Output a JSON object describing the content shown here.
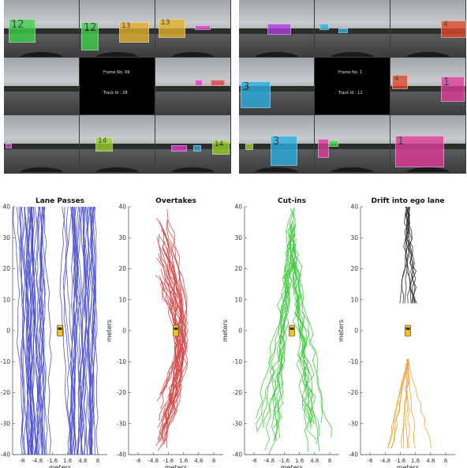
{
  "panels": [
    {
      "frame_label": "Frame No. 99",
      "track_label": "Track Id : 28",
      "boxes": [
        {
          "cell": 0,
          "label": "12",
          "color": "#3ed34a"
        },
        {
          "cell": 1,
          "label": "12",
          "color": "#3ed34a"
        },
        {
          "cell": 1,
          "label": "13",
          "color": "#e3b12a"
        },
        {
          "cell": 2,
          "label": "13",
          "color": "#e3b12a"
        },
        {
          "cell": 2,
          "label": "",
          "color": "#e13ad0"
        },
        {
          "cell": 5,
          "label": "",
          "color": "#e13ad0"
        },
        {
          "cell": 5,
          "label": "",
          "color": "#e04040"
        },
        {
          "cell": 6,
          "label": "",
          "color": "#e13ad0"
        },
        {
          "cell": 7,
          "label": "14",
          "color": "#9ad12a"
        },
        {
          "cell": 8,
          "label": "",
          "color": "#e13ad0"
        },
        {
          "cell": 8,
          "label": "",
          "color": "#2ab0e3"
        },
        {
          "cell": 8,
          "label": "14",
          "color": "#9ad12a"
        }
      ]
    },
    {
      "frame_label": "Frame No. 1",
      "track_label": "Track Id : 11",
      "boxes": [
        {
          "cell": 0,
          "label": "",
          "color": "#b13ae0"
        },
        {
          "cell": 1,
          "label": "",
          "color": "#2ab0e3"
        },
        {
          "cell": 1,
          "label": "",
          "color": "#2ab0e3"
        },
        {
          "cell": 2,
          "label": "4",
          "color": "#e04a2a"
        },
        {
          "cell": 3,
          "label": "3",
          "color": "#2ab0e3"
        },
        {
          "cell": 5,
          "label": "4",
          "color": "#e04a2a"
        },
        {
          "cell": 5,
          "label": "1",
          "color": "#e13a9a"
        },
        {
          "cell": 6,
          "label": "",
          "color": "#9ad12a"
        },
        {
          "cell": 6,
          "label": "3",
          "color": "#2ab0e3"
        },
        {
          "cell": 7,
          "label": "",
          "color": "#e13a9a"
        },
        {
          "cell": 7,
          "label": "",
          "color": "#3ed34a"
        },
        {
          "cell": 8,
          "label": "1",
          "color": "#e13a9a"
        }
      ]
    }
  ],
  "chart_data": [
    {
      "type": "line",
      "title": "Lane Passes",
      "xlabel": "meters",
      "ylabel": "meters",
      "xlim": [
        -10,
        10
      ],
      "ylim": [
        -40,
        40
      ],
      "yticks": [
        -40,
        -30,
        -20,
        -10,
        0,
        10,
        20,
        30,
        40
      ],
      "xticks": [
        "-8",
        "-4.8",
        "-1.6",
        "1.6",
        "4.8",
        "8"
      ],
      "color": "#4a4fd0",
      "vehicle_color": "#f2c21b"
    },
    {
      "type": "line",
      "title": "Overtakes",
      "xlabel": "meters",
      "ylabel": "meters",
      "xlim": [
        -10,
        10
      ],
      "ylim": [
        -40,
        40
      ],
      "yticks": [
        -40,
        -30,
        -20,
        -10,
        0,
        10,
        20,
        30,
        40
      ],
      "xticks": [
        "-8",
        "-4.8",
        "-1.6",
        "1.6",
        "4.8",
        "8"
      ],
      "color": "#d04a4a",
      "vehicle_color": "#f2c21b"
    },
    {
      "type": "line",
      "title": "Cut-ins",
      "xlabel": "meters",
      "ylabel": "meters",
      "xlim": [
        -10,
        10
      ],
      "ylim": [
        -40,
        40
      ],
      "yticks": [
        -40,
        -30,
        -20,
        -10,
        0,
        10,
        20,
        30,
        40
      ],
      "xticks": [
        "-8",
        "-4.8",
        "-1.6",
        "1.6",
        "4.8",
        "8"
      ],
      "color": "#3ec83e",
      "vehicle_color": "#f2c21b"
    },
    {
      "type": "line",
      "title": "Drift into ego lane",
      "xlabel": "meters",
      "ylabel": "meters",
      "xlim": [
        -10,
        10
      ],
      "ylim": [
        -40,
        40
      ],
      "yticks": [
        -40,
        -30,
        -20,
        -10,
        0,
        10,
        20,
        30,
        40
      ],
      "xticks": [
        "-8",
        "-4.8",
        "-1.6",
        "1.6",
        "4.8",
        "8"
      ],
      "colors": [
        "#303030",
        "#f0a030"
      ],
      "vehicle_color": "#f2c21b"
    }
  ]
}
